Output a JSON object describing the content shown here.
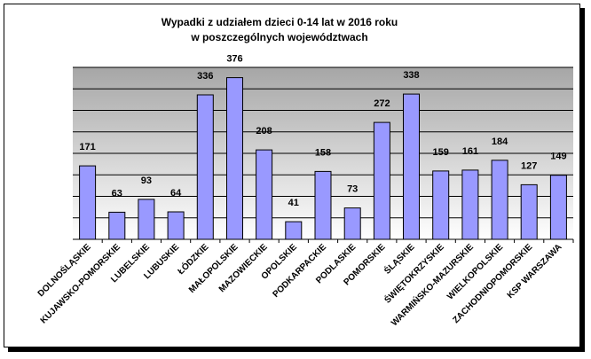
{
  "chart_data": {
    "type": "bar",
    "title": [
      "Wypadki z udziałem dzieci 0-14 lat w 2016 roku",
      "w poszczególnych województwach"
    ],
    "categories": [
      "DOLNOŚLĄSKIE",
      "KUJAWSKO-POMORSKIE",
      "LUBELSKIE",
      "LUBUSKIE",
      "ŁÓDZKIE",
      "MAŁOPOLSKIE",
      "MAZOWIECKIE",
      "OPOLSKIE",
      "PODKARPACKIE",
      "PODLASKIE",
      "POMORSKIE",
      "ŚLĄSKIE",
      "ŚWIĘTOKRZYSKIE",
      "WARMIŃSKO-MAZURSKIE",
      "WIELKOPOLSKIE",
      "ZACHODNIOPOMORSKIE",
      "KSP WARSZAWA"
    ],
    "values": [
      171,
      63,
      93,
      64,
      336,
      376,
      208,
      41,
      158,
      73,
      272,
      338,
      159,
      161,
      184,
      127,
      149
    ],
    "ylim": [
      0,
      400
    ],
    "grid": true,
    "legend": "none",
    "colors": {
      "bar_fill": "#9999ff",
      "bar_stroke": "#000000",
      "plot_background_top": "#a6a6a6",
      "plot_background_bottom": "#ffffff",
      "gridline": "#000000"
    }
  }
}
